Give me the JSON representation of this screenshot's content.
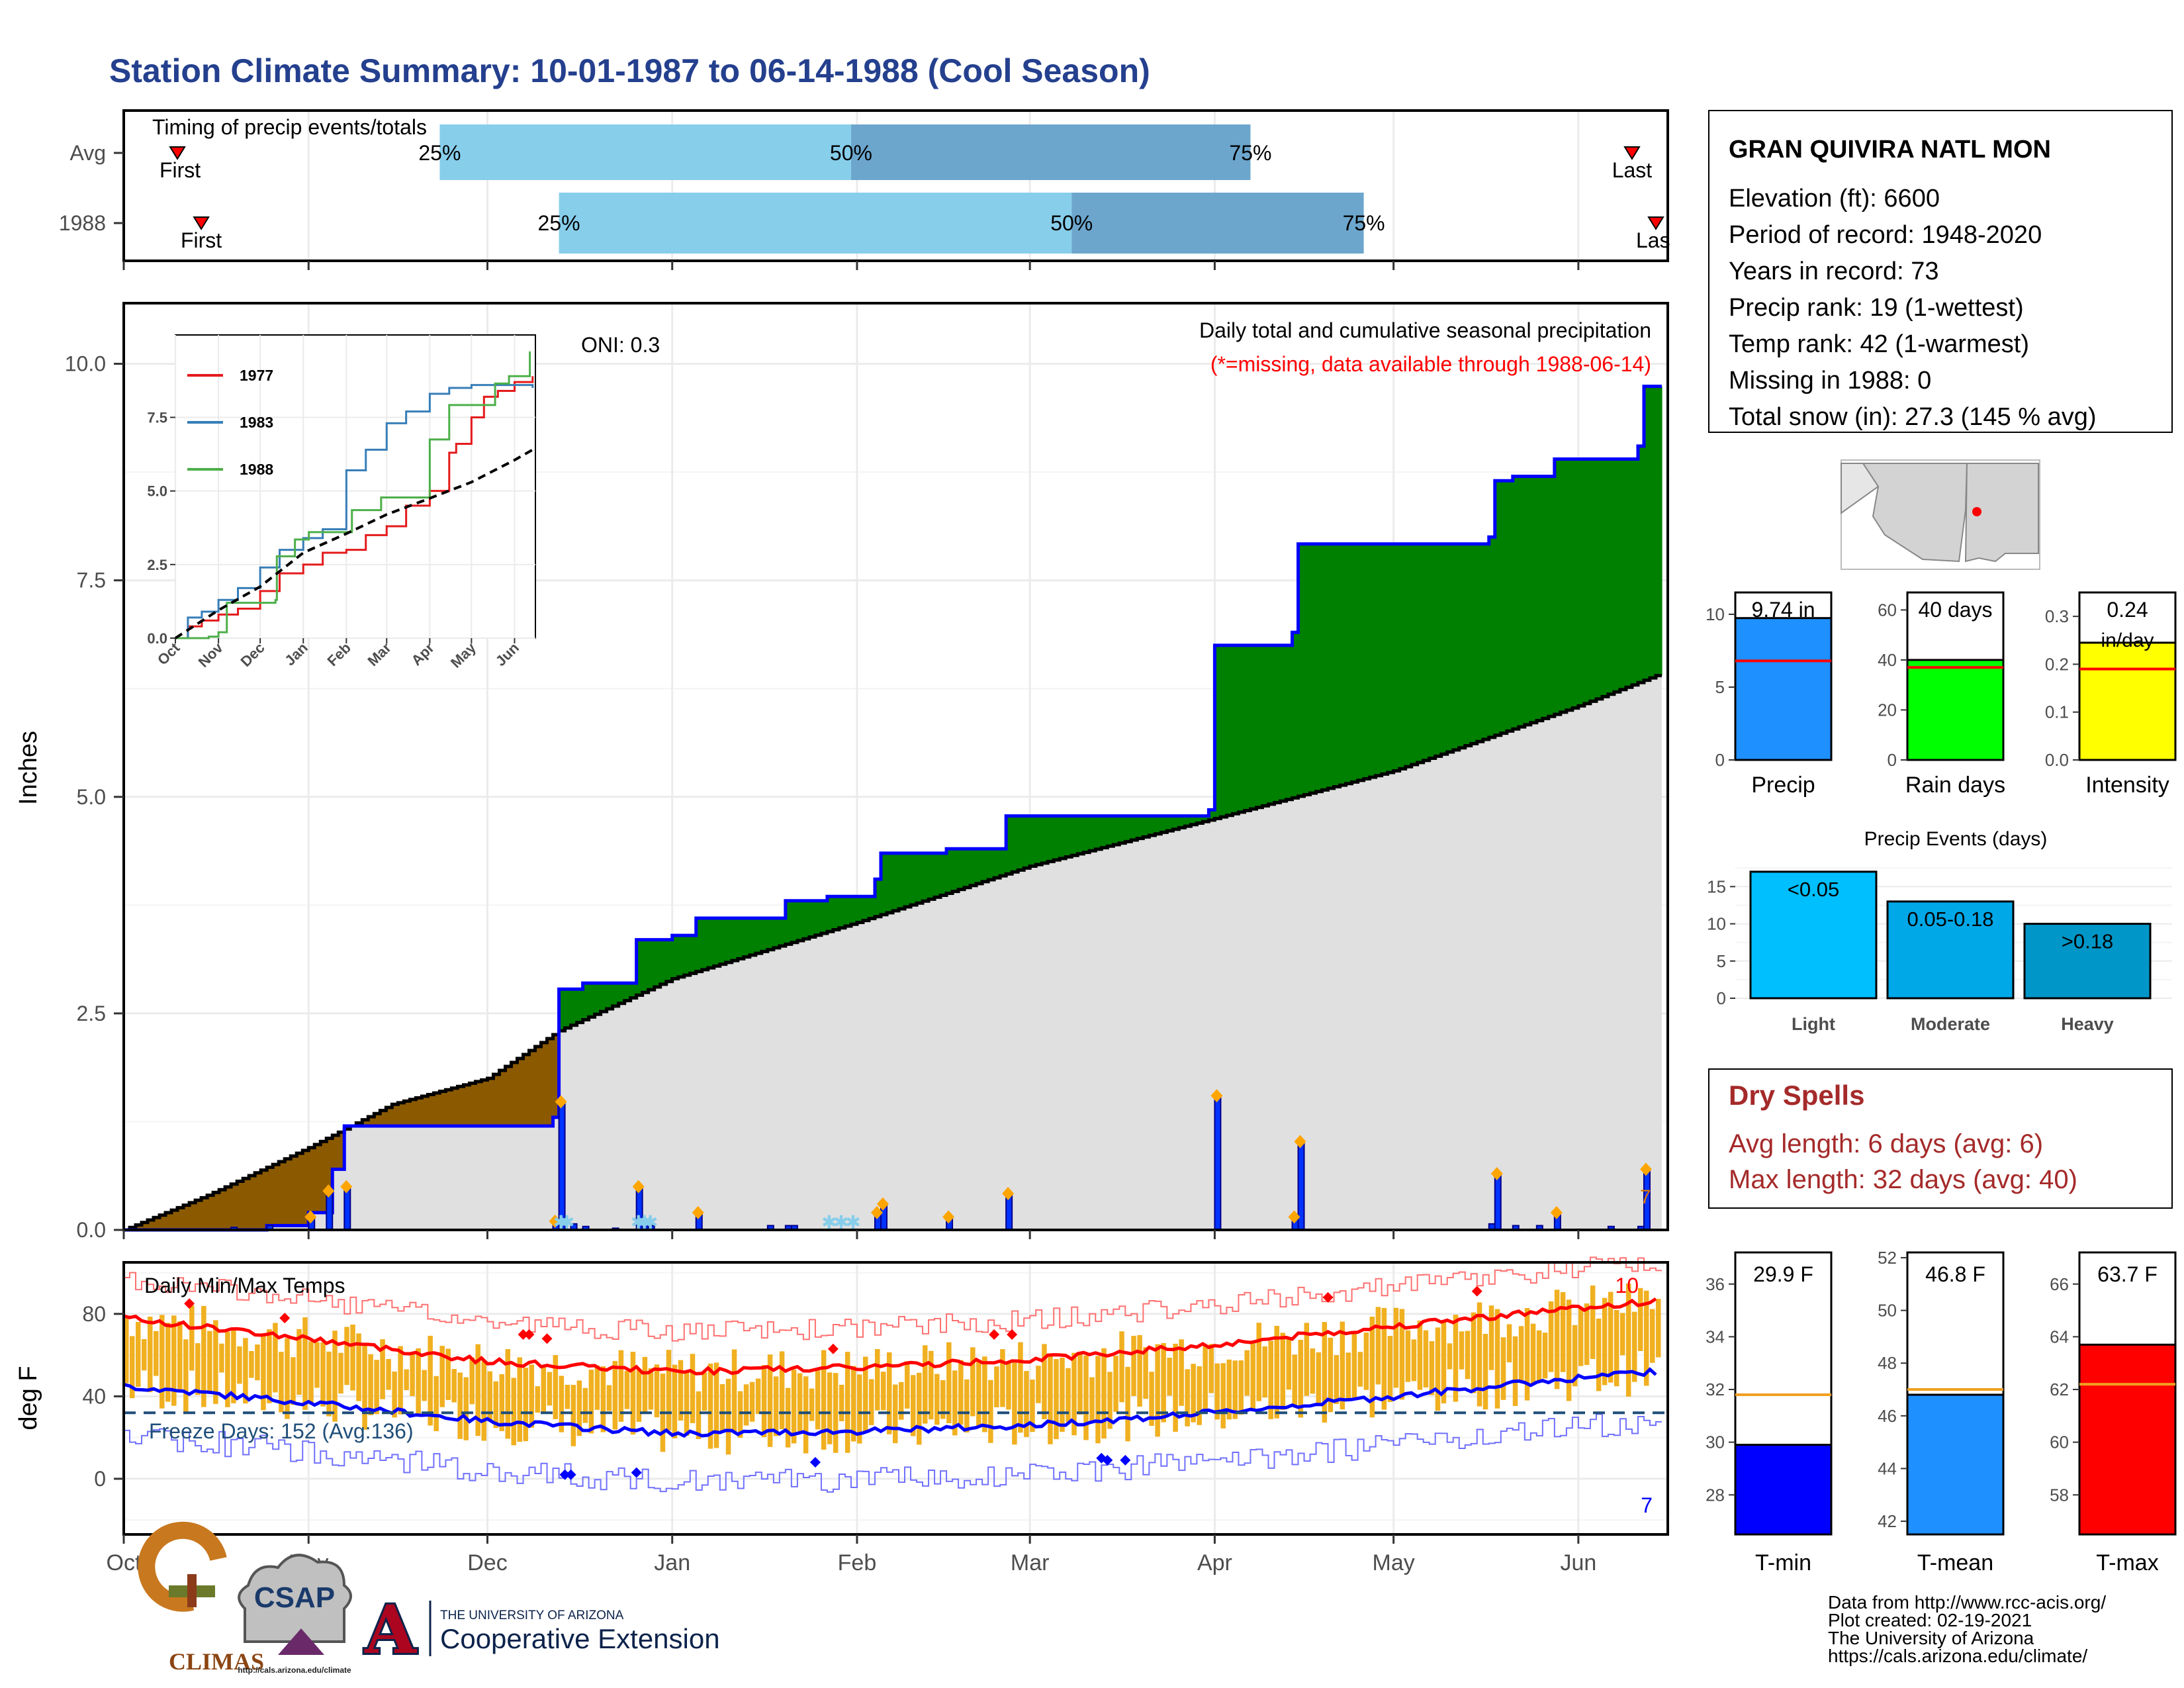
{
  "title": "Station Climate Summary: 10-01-1987 to 06-14-1988 (Cool Season)",
  "colors": {
    "title": "#24408e",
    "precip_cum": "#0000ff",
    "above_avg": "#008000",
    "below_avg": "#8b5a00",
    "avg_fill": "#e0e0e0",
    "tmax": "#ff0000",
    "tmin": "#0000ff",
    "range": "#f0b020",
    "event": "#ffa500",
    "dry_spell": "#a52a2a"
  },
  "timing_panel": {
    "title": "Timing of precip events/totals",
    "rows": [
      {
        "label": "Avg",
        "q25": "25%",
        "q50": "50%",
        "q75": "75%",
        "first": "First",
        "last": "Last",
        "q25_date": "1987-11-23",
        "q50_date": "1988-01-31",
        "q75_date": "1988-04-07",
        "first_date": "1987-10-10",
        "last_date": "1988-06-10"
      },
      {
        "label": "1988",
        "q25": "25%",
        "q50": "50%",
        "q75": "75%",
        "first": "First",
        "last": "Las",
        "q25_date": "1987-12-13",
        "q50_date": "1988-03-08",
        "q75_date": "1988-04-26",
        "first_date": "1987-10-14",
        "last_date": "1988-06-14"
      }
    ]
  },
  "precip_panel": {
    "ylabel": "Inches",
    "oni": "ONI: 0.3",
    "subtitle": "Daily total and cumulative seasonal precipitation",
    "missing_note": "(*=missing, data available through 1988-06-14)",
    "yticks": [
      "0.0",
      "2.5",
      "5.0",
      "7.5",
      "10.0"
    ],
    "corner_label": "7"
  },
  "inset": {
    "series": [
      {
        "name": "1977",
        "color": "#e41a1c"
      },
      {
        "name": "1983",
        "color": "#377eb8"
      },
      {
        "name": "1988",
        "color": "#4daf4a"
      }
    ],
    "yticks": [
      "0.0",
      "2.5",
      "5.0",
      "7.5"
    ],
    "xticks": [
      "Oct",
      "Nov",
      "Dec",
      "Jan",
      "Feb",
      "Mar",
      "Apr",
      "May",
      "Jun"
    ]
  },
  "temp_panel": {
    "ylabel": "deg F",
    "title": "Daily Min/Max Temps",
    "freeze": "Freeze Days: 152 (Avg:136)",
    "yticks": [
      "0",
      "40",
      "80"
    ],
    "max_count": "10",
    "min_count": "7"
  },
  "months": [
    "Oct",
    "Nov",
    "Dec",
    "Jan",
    "Feb",
    "Mar",
    "Apr",
    "May",
    "Jun"
  ],
  "info": {
    "station": "GRAN QUIVIRA NATL MON",
    "lines": [
      "Elevation (ft): 6600",
      "Period of record: 1948-2020",
      "Years in record: 73",
      "Precip rank: 19 (1-wettest)",
      "Temp rank: 42 (1-warmest)",
      "Missing in 1988: 0",
      "Total snow (in): 27.3 (145 % avg)"
    ]
  },
  "mini_bars": [
    {
      "label": "Precip",
      "value_label": "9.74 in",
      "value": 9.74,
      "avg": 6.8,
      "ymax": 11.5,
      "ticks": [
        "0",
        "5",
        "10"
      ],
      "tickvals": [
        0,
        5,
        10
      ],
      "color": "#1e90ff"
    },
    {
      "label": "Rain days",
      "value_label": "40 days",
      "value": 40,
      "avg": 37,
      "ymax": 67,
      "ticks": [
        "0",
        "20",
        "40",
        "60"
      ],
      "tickvals": [
        0,
        20,
        40,
        60
      ],
      "color": "#00ff00"
    },
    {
      "label": "Intensity",
      "value_label": "0.24",
      "value_label2": "in/day",
      "value": 0.245,
      "avg": 0.19,
      "ymax": 0.35,
      "ticks": [
        "0.0",
        "0.1",
        "0.2",
        "0.3"
      ],
      "tickvals": [
        0,
        0.1,
        0.2,
        0.3
      ],
      "color": "#ffff00"
    }
  ],
  "events": {
    "title": "Precip Events (days)",
    "yticks": [
      "0",
      "5",
      "10",
      "15"
    ],
    "bars": [
      {
        "label": "Light",
        "range": "<0.05",
        "value": 17,
        "color": "#00bfff"
      },
      {
        "label": "Moderate",
        "range": "0.05-0.18",
        "value": 13,
        "color": "#00a8e8"
      },
      {
        "label": "Heavy",
        "range": ">0.18",
        "value": 10,
        "color": "#0096c8"
      }
    ]
  },
  "dry_spells": {
    "title": "Dry Spells",
    "line1": "Avg length: 6 days (avg: 6)",
    "line2": "Max length: 32 days (avg: 40)"
  },
  "temp_bars": [
    {
      "label": "T-min",
      "value_label": "29.9 F",
      "value": 29.9,
      "avg": 31.8,
      "ymin": 26.5,
      "ymax": 37.2,
      "ticks": [
        "28",
        "30",
        "32",
        "34",
        "36"
      ],
      "tickvals": [
        28,
        30,
        32,
        34,
        36
      ],
      "color": "#0000ff"
    },
    {
      "label": "T-mean",
      "value_label": "46.8 F",
      "value": 46.8,
      "avg": 47.0,
      "ymin": 41.5,
      "ymax": 52.2,
      "ticks": [
        "42",
        "44",
        "46",
        "48",
        "50",
        "52"
      ],
      "tickvals": [
        42,
        44,
        46,
        48,
        50,
        52
      ],
      "color": "#1e90ff"
    },
    {
      "label": "T-max",
      "value_label": "63.7 F",
      "value": 63.7,
      "avg": 62.2,
      "ymin": 56.5,
      "ymax": 67.2,
      "ticks": [
        "58",
        "60",
        "62",
        "64",
        "66"
      ],
      "tickvals": [
        58,
        60,
        62,
        64,
        66
      ],
      "color": "#ff0000"
    }
  ],
  "credits": [
    "Data from http://www.rcc-acis.org/",
    "Plot created: 02-19-2021",
    "The University of Arizona",
    "https://cals.arizona.edu/climate/"
  ],
  "logos": {
    "climas": "CLIMAS",
    "csap": "CSAP",
    "csap_url": "http://cals.arizona.edu/climate",
    "ua_line1": "THE UNIVERSITY OF ARIZONA",
    "ua_line2": "Cooperative Extension",
    "ua_mark": "A"
  },
  "chart_data": [
    {
      "type": "area",
      "title": "Daily total and cumulative seasonal precipitation",
      "ylabel": "Inches",
      "ylim": [
        0,
        10.7
      ],
      "x_range": [
        "1987-10-01",
        "1988-06-14"
      ],
      "cumulative_1988": [
        {
          "x": "1987-10-01",
          "y": 0.0
        },
        {
          "x": "1987-10-25",
          "y": 0.05
        },
        {
          "x": "1987-11-01",
          "y": 0.2
        },
        {
          "x": "1987-11-05",
          "y": 0.7
        },
        {
          "x": "1987-11-07",
          "y": 1.2
        },
        {
          "x": "1987-12-12",
          "y": 1.3
        },
        {
          "x": "1987-12-13",
          "y": 2.78
        },
        {
          "x": "1987-12-17",
          "y": 2.85
        },
        {
          "x": "1987-12-26",
          "y": 3.35
        },
        {
          "x": "1988-01-01",
          "y": 3.4
        },
        {
          "x": "1988-01-05",
          "y": 3.6
        },
        {
          "x": "1988-01-17",
          "y": 3.6
        },
        {
          "x": "1988-01-20",
          "y": 3.8
        },
        {
          "x": "1988-01-27",
          "y": 3.85
        },
        {
          "x": "1988-02-04",
          "y": 4.05
        },
        {
          "x": "1988-02-05",
          "y": 4.35
        },
        {
          "x": "1988-02-16",
          "y": 4.4
        },
        {
          "x": "1988-02-26",
          "y": 4.78
        },
        {
          "x": "1988-03-31",
          "y": 4.85
        },
        {
          "x": "1988-04-01",
          "y": 6.75
        },
        {
          "x": "1988-04-14",
          "y": 6.9
        },
        {
          "x": "1988-04-15",
          "y": 7.92
        },
        {
          "x": "1988-05-17",
          "y": 8.0
        },
        {
          "x": "1988-05-18",
          "y": 8.65
        },
        {
          "x": "1988-05-21",
          "y": 8.7
        },
        {
          "x": "1988-05-28",
          "y": 8.9
        },
        {
          "x": "1988-06-11",
          "y": 9.05
        },
        {
          "x": "1988-06-12",
          "y": 9.74
        }
      ],
      "average": [
        {
          "x": "1987-10-01",
          "y": 0.0
        },
        {
          "x": "1987-10-15",
          "y": 0.4
        },
        {
          "x": "1987-11-01",
          "y": 0.95
        },
        {
          "x": "1987-11-15",
          "y": 1.45
        },
        {
          "x": "1987-12-01",
          "y": 1.75
        },
        {
          "x": "1987-12-13",
          "y": 2.3
        },
        {
          "x": "1988-01-01",
          "y": 2.9
        },
        {
          "x": "1988-02-01",
          "y": 3.55
        },
        {
          "x": "1988-03-01",
          "y": 4.2
        },
        {
          "x": "1988-04-01",
          "y": 4.75
        },
        {
          "x": "1988-05-01",
          "y": 5.3
        },
        {
          "x": "1988-06-01",
          "y": 6.05
        },
        {
          "x": "1988-06-14",
          "y": 6.4
        }
      ],
      "daily": [
        {
          "x": "1987-10-19",
          "y": 0.03
        },
        {
          "x": "1987-10-25",
          "y": 0.05
        },
        {
          "x": "1987-11-01",
          "y": 0.15
        },
        {
          "x": "1987-11-04",
          "y": 0.45
        },
        {
          "x": "1987-11-07",
          "y": 0.5
        },
        {
          "x": "1987-12-12",
          "y": 0.1
        },
        {
          "x": "1987-12-13",
          "y": 1.48
        },
        {
          "x": "1987-12-15",
          "y": 0.07
        },
        {
          "x": "1987-12-17",
          "y": 0.04
        },
        {
          "x": "1987-12-22",
          "y": 0.02
        },
        {
          "x": "1987-12-26",
          "y": 0.5
        },
        {
          "x": "1987-12-27",
          "y": 0.05
        },
        {
          "x": "1987-12-28",
          "y": 0.05
        },
        {
          "x": "1988-01-05",
          "y": 0.2
        },
        {
          "x": "1988-01-17",
          "y": 0.05
        },
        {
          "x": "1988-01-20",
          "y": 0.05
        },
        {
          "x": "1988-01-21",
          "y": 0.05
        },
        {
          "x": "1988-02-04",
          "y": 0.2
        },
        {
          "x": "1988-02-05",
          "y": 0.3
        },
        {
          "x": "1988-02-16",
          "y": 0.15
        },
        {
          "x": "1988-02-26",
          "y": 0.42
        },
        {
          "x": "1988-04-01",
          "y": 1.55
        },
        {
          "x": "1988-04-14",
          "y": 0.15
        },
        {
          "x": "1988-04-15",
          "y": 1.02
        },
        {
          "x": "1988-05-17",
          "y": 0.07
        },
        {
          "x": "1988-05-18",
          "y": 0.65
        },
        {
          "x": "1988-05-21",
          "y": 0.05
        },
        {
          "x": "1988-05-25",
          "y": 0.05
        },
        {
          "x": "1988-05-28",
          "y": 0.2
        },
        {
          "x": "1988-06-06",
          "y": 0.04
        },
        {
          "x": "1988-06-11",
          "y": 0.04
        },
        {
          "x": "1988-06-12",
          "y": 0.7
        }
      ],
      "snow_days": [
        "1987-12-13",
        "1987-12-14",
        "1987-12-26",
        "1987-12-27",
        "1987-12-28",
        "1988-01-27",
        "1988-01-29",
        "1988-01-31"
      ]
    },
    {
      "type": "line",
      "title": "",
      "ylabel": "",
      "ylim": [
        0,
        10.3
      ],
      "x_range": [
        "1987-10-01",
        "1988-06-14"
      ],
      "series": [
        {
          "name": "1977",
          "points": [
            [
              "1987-10-01",
              0
            ],
            [
              "1987-10-10",
              0.4
            ],
            [
              "1987-10-20",
              0.6
            ],
            [
              "1987-11-01",
              0.8
            ],
            [
              "1987-11-15",
              1.0
            ],
            [
              "1987-12-01",
              1.6
            ],
            [
              "1987-12-15",
              2.2
            ],
            [
              "1988-01-01",
              2.5
            ],
            [
              "1988-01-15",
              2.9
            ],
            [
              "1988-02-01",
              3.0
            ],
            [
              "1988-02-15",
              3.5
            ],
            [
              "1988-03-01",
              3.8
            ],
            [
              "1988-03-15",
              4.5
            ],
            [
              "1988-04-01",
              5.0
            ],
            [
              "1988-04-15",
              6.3
            ],
            [
              "1988-04-20",
              6.6
            ],
            [
              "1988-05-01",
              7.5
            ],
            [
              "1988-05-10",
              8.2
            ],
            [
              "1988-05-20",
              8.4
            ],
            [
              "1988-06-01",
              8.7
            ],
            [
              "1988-06-14",
              8.9
            ]
          ]
        },
        {
          "name": "1983",
          "points": [
            [
              "1987-10-01",
              0
            ],
            [
              "1987-10-10",
              0.7
            ],
            [
              "1987-10-20",
              0.9
            ],
            [
              "1987-11-01",
              1.3
            ],
            [
              "1987-11-15",
              1.7
            ],
            [
              "1987-12-01",
              2.4
            ],
            [
              "1987-12-15",
              3.0
            ],
            [
              "1988-01-01",
              3.4
            ],
            [
              "1988-01-15",
              3.7
            ],
            [
              "1988-02-01",
              5.7
            ],
            [
              "1988-02-15",
              6.4
            ],
            [
              "1988-03-01",
              7.3
            ],
            [
              "1988-03-15",
              7.7
            ],
            [
              "1988-04-01",
              8.3
            ],
            [
              "1988-04-15",
              8.5
            ],
            [
              "1988-05-01",
              8.6
            ],
            [
              "1988-06-14",
              8.5
            ]
          ]
        },
        {
          "name": "1988",
          "points": [
            [
              "1987-10-01",
              0
            ],
            [
              "1987-10-25",
              0.05
            ],
            [
              "1987-11-01",
              0.2
            ],
            [
              "1987-11-07",
              1.2
            ],
            [
              "1987-12-12",
              1.3
            ],
            [
              "1987-12-13",
              2.78
            ],
            [
              "1987-12-26",
              3.35
            ],
            [
              "1988-01-05",
              3.6
            ],
            [
              "1988-02-05",
              4.35
            ],
            [
              "1988-02-26",
              4.78
            ],
            [
              "1988-04-01",
              6.75
            ],
            [
              "1988-04-15",
              7.92
            ],
            [
              "1988-05-18",
              8.65
            ],
            [
              "1988-05-28",
              8.9
            ],
            [
              "1988-06-12",
              9.74
            ]
          ]
        },
        {
          "name": "",
          "style": "dashed",
          "points": [
            [
              "1987-10-01",
              0
            ],
            [
              "1987-11-01",
              0.95
            ],
            [
              "1987-12-01",
              1.75
            ],
            [
              "1988-01-01",
              2.9
            ],
            [
              "1988-02-01",
              3.55
            ],
            [
              "1988-03-01",
              4.2
            ],
            [
              "1988-04-01",
              4.75
            ],
            [
              "1988-05-01",
              5.3
            ],
            [
              "1988-06-01",
              6.05
            ],
            [
              "1988-06-14",
              6.4
            ]
          ]
        }
      ]
    },
    {
      "type": "line",
      "title": "Daily Min/Max Temps",
      "ylabel": "deg F",
      "ylim": [
        -27,
        105
      ],
      "x_range": [
        "1987-10-01",
        "1988-06-14"
      ],
      "freeze_line": 32,
      "series": [
        {
          "name": "",
          "points": [
            [
              "1987-10-01",
              78
            ],
            [
              "1987-11-01",
              68
            ],
            [
              "1987-12-01",
              57
            ],
            [
              "1988-01-01",
              52
            ],
            [
              "1988-02-01",
              54
            ],
            [
              "1988-03-01",
              58
            ],
            [
              "1988-04-01",
              65
            ],
            [
              "1988-05-01",
              74
            ],
            [
              "1988-06-01",
              83
            ],
            [
              "1988-06-14",
              86
            ]
          ]
        },
        {
          "name": "",
          "points": [
            [
              "1987-10-01",
              45
            ],
            [
              "1987-11-01",
              37
            ],
            [
              "1987-12-01",
              28
            ],
            [
              "1988-01-01",
              22
            ],
            [
              "1988-02-01",
              23
            ],
            [
              "1988-03-01",
              26
            ],
            [
              "1988-04-01",
              32
            ],
            [
              "1988-05-01",
              40
            ],
            [
              "1988-06-01",
              49
            ],
            [
              "1988-06-14",
              52
            ]
          ]
        }
      ],
      "record_highs": [
        [
          "1987-10-12",
          85
        ],
        [
          "1987-10-28",
          78
        ],
        [
          "1987-12-07",
          70
        ],
        [
          "1987-12-08",
          70
        ],
        [
          "1987-12-11",
          68
        ],
        [
          "1988-01-28",
          63
        ],
        [
          "1988-02-24",
          70
        ],
        [
          "1988-02-27",
          70
        ],
        [
          "1988-04-20",
          88
        ],
        [
          "1988-05-15",
          91
        ]
      ],
      "record_lows": [
        [
          "1987-12-14",
          2
        ],
        [
          "1987-12-15",
          2
        ],
        [
          "1987-12-26",
          3
        ],
        [
          "1988-01-25",
          8
        ],
        [
          "1988-03-13",
          10
        ],
        [
          "1988-03-14",
          9
        ],
        [
          "1988-03-17",
          9
        ]
      ]
    }
  ]
}
